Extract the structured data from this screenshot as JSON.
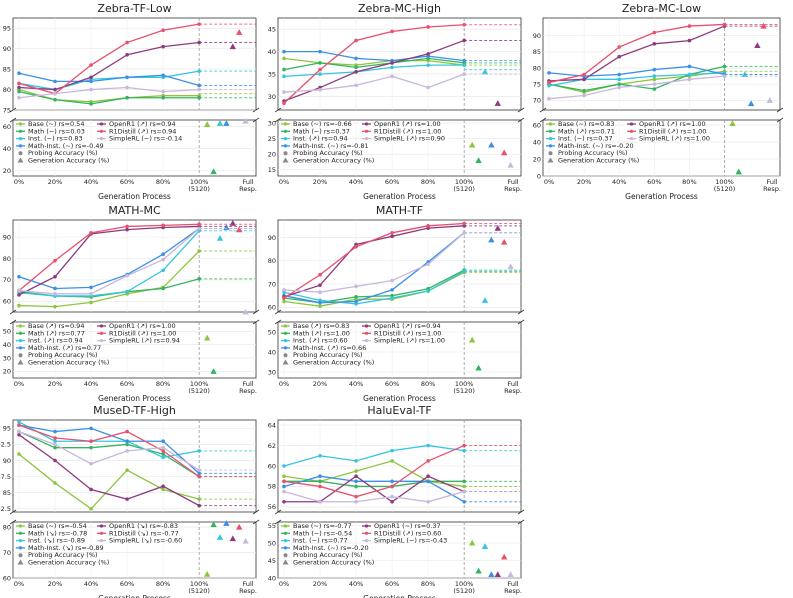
{
  "figure": {
    "x_label": "Generation Process",
    "colors": {
      "Base": "#8cc63f",
      "Math": "#35b35f",
      "Inst.": "#35c5e0",
      "Math-Inst.": "#3a8fe6",
      "OpenR1": "#8e3a7f",
      "R1Distill": "#e8506c",
      "SimpleRL": "#c9b7dc"
    },
    "legend_symbols": {
      "probing": "Probing Accuracy (%)",
      "generation": "Generation Accuracy (%)"
    }
  },
  "chart_data": [
    {
      "title": "Zebra-TF-Low",
      "type": "line",
      "x": [
        "0%",
        "20%",
        "40%",
        "60%",
        "80%",
        "100%\n(5120)",
        "Full\nResp."
      ],
      "upper": {
        "ylim": [
          75,
          97.5
        ],
        "ticks": [
          75,
          80,
          85,
          90,
          95
        ]
      },
      "lower": {
        "ylim": [
          15,
          66
        ],
        "ticks": [
          20,
          40,
          60
        ]
      },
      "series": [
        {
          "name": "Base",
          "trend": "~",
          "rs": "0.54",
          "probe": [
            80.0,
            77.5,
            77.0,
            78.0,
            78.5,
            78.5
          ],
          "final": 79,
          "gen": 62
        },
        {
          "name": "Math",
          "trend": "~",
          "rs": "0.03",
          "probe": [
            79.5,
            77.5,
            76.5,
            78.0,
            78.0,
            78.0
          ],
          "final": 78,
          "gen": 19
        },
        {
          "name": "Inst.",
          "trend": "~",
          "rs": "0.83",
          "probe": [
            81.5,
            80.0,
            82.5,
            83.0,
            83.0,
            84.5
          ],
          "final": 84.5,
          "gen": 63
        },
        {
          "name": "Math-Inst.",
          "trend": "~",
          "rs": "-0.49",
          "probe": [
            84.0,
            82.0,
            82.0,
            83.0,
            83.5,
            81.0
          ],
          "final": 81,
          "gen": 63
        },
        {
          "name": "OpenR1",
          "trend": "↗",
          "rs": "0.94",
          "probe": [
            80.5,
            80.0,
            83.0,
            88.5,
            90.5,
            91.5
          ],
          "final": 91.5,
          "gen": 90.5
        },
        {
          "name": "R1Distill",
          "trend": "↗",
          "rs": "0.94",
          "probe": [
            81.5,
            79.0,
            86.0,
            91.5,
            94.5,
            96.0
          ],
          "final": 96,
          "gen": 94
        },
        {
          "name": "SimpleRL",
          "trend": "~",
          "rs": "-0.14",
          "probe": [
            78.0,
            79.0,
            80.0,
            80.5,
            79.5,
            80.0
          ],
          "final": 80,
          "gen": 65
        }
      ]
    },
    {
      "title": "Zebra-MC-High",
      "type": "line",
      "x": [
        "0%",
        "20%",
        "40%",
        "60%",
        "80%",
        "100%\n(5120)",
        "Full\nResp."
      ],
      "upper": {
        "ylim": [
          27,
          47.5
        ],
        "ticks": [
          30,
          35,
          40,
          45
        ]
      },
      "lower": {
        "ylim": [
          13,
          31
        ],
        "ticks": [
          15,
          20,
          25,
          30
        ]
      },
      "series": [
        {
          "name": "Base",
          "trend": "~",
          "rs": "-0.66",
          "probe": [
            38.5,
            37.5,
            37.0,
            38.0,
            38.0,
            37.0
          ],
          "final": 37,
          "gen": 23
        },
        {
          "name": "Math",
          "trend": "~",
          "rs": "0.37",
          "probe": [
            36.0,
            37.5,
            36.5,
            37.5,
            38.5,
            37.5
          ],
          "final": 37.5,
          "gen": 18
        },
        {
          "name": "Inst.",
          "trend": "↗",
          "rs": "0.94",
          "probe": [
            34.5,
            35.0,
            35.5,
            36.5,
            37.0,
            37.0
          ],
          "final": 36,
          "gen": 35.5
        },
        {
          "name": "Math-Inst.",
          "trend": "~",
          "rs": "-0.81",
          "probe": [
            40.0,
            40.0,
            38.5,
            38.0,
            39.0,
            38.0
          ],
          "final": 38,
          "gen": 23
        },
        {
          "name": "OpenR1",
          "trend": "↗",
          "rs": "1.00",
          "probe": [
            29.0,
            32.0,
            35.5,
            37.5,
            39.5,
            42.5
          ],
          "final": 42.5,
          "gen": 28.5
        },
        {
          "name": "R1Distill",
          "trend": "↗",
          "rs": "1.00",
          "probe": [
            28.5,
            36.0,
            42.5,
            44.5,
            45.5,
            46.0
          ],
          "final": 46,
          "gen": 20.5
        },
        {
          "name": "SimpleRL",
          "trend": "↗",
          "rs": "0.90",
          "probe": [
            31.0,
            31.5,
            32.5,
            34.5,
            32.0,
            35.0
          ],
          "final": 35,
          "gen": 16.5
        }
      ]
    },
    {
      "title": "Zebra-MC-Low",
      "type": "line",
      "x": [
        "0%",
        "20%",
        "40%",
        "60%",
        "80%",
        "100%\n(5120)",
        "Full\nResp."
      ],
      "upper": {
        "ylim": [
          67,
          95.5
        ],
        "ticks": [
          70,
          75,
          80,
          85,
          90
        ]
      },
      "lower": {
        "ylim": [
          0,
          66
        ],
        "ticks": [
          0,
          20,
          40,
          60
        ]
      },
      "series": [
        {
          "name": "Base",
          "trend": "~",
          "rs": "0.83",
          "probe": [
            75.0,
            72.5,
            75.0,
            76.5,
            77.5,
            79.0
          ],
          "final": 79,
          "gen": 62
        },
        {
          "name": "Math",
          "trend": "↗",
          "rs": "0.71",
          "probe": [
            75.0,
            73.0,
            75.0,
            73.5,
            78.0,
            80.5
          ],
          "final": 80.5,
          "gen": 5
        },
        {
          "name": "Inst.",
          "trend": "~",
          "rs": "0.37",
          "probe": [
            74.5,
            76.5,
            76.5,
            77.5,
            78.0,
            78.5
          ],
          "final": 78,
          "gen": 78
        },
        {
          "name": "Math-Inst.",
          "trend": "~",
          "rs": "-0.20",
          "probe": [
            78.5,
            77.5,
            78.0,
            79.5,
            80.5,
            78.0
          ],
          "final": 78,
          "gen": 69
        },
        {
          "name": "OpenR1",
          "trend": "↗",
          "rs": "1.00",
          "probe": [
            76.0,
            76.5,
            83.5,
            87.5,
            88.5,
            93.0
          ],
          "final": 93,
          "gen": 87
        },
        {
          "name": "R1Distill",
          "trend": "↗",
          "rs": "1.00",
          "probe": [
            75.5,
            78.0,
            86.5,
            91.0,
            93.0,
            93.5
          ],
          "final": 93.5,
          "gen": 93
        },
        {
          "name": "SimpleRL",
          "trend": "↗",
          "rs": "1.00",
          "probe": [
            70.5,
            71.5,
            74.0,
            75.0,
            76.5,
            77.5
          ],
          "final": 77.5,
          "gen": 70
        }
      ]
    },
    {
      "title": "MATH-MC",
      "type": "line",
      "x": [
        "0%",
        "20%",
        "40%",
        "60%",
        "80%",
        "100%\n(5120)",
        "Full\nResp."
      ],
      "upper": {
        "ylim": [
          55,
          98
        ],
        "ticks": [
          60,
          70,
          80,
          90
        ]
      },
      "lower": {
        "ylim": [
          15,
          57
        ],
        "ticks": [
          20,
          30,
          40,
          50
        ]
      },
      "series": [
        {
          "name": "Base",
          "trend": "↗",
          "rs": "0.94",
          "probe": [
            58.0,
            57.5,
            59.5,
            63.5,
            66.5,
            83.5
          ],
          "final": 83.5,
          "gen": 45
        },
        {
          "name": "Math",
          "trend": "↗",
          "rs": "0.77",
          "probe": [
            64.5,
            62.5,
            62.0,
            64.5,
            66.0,
            70.5
          ],
          "final": 70.5,
          "gen": 20
        },
        {
          "name": "Inst.",
          "trend": "↗",
          "rs": "0.94",
          "probe": [
            64.0,
            62.5,
            62.5,
            64.5,
            74.5,
            93.0
          ],
          "final": 93,
          "gen": 89.5
        },
        {
          "name": "Math-Inst.",
          "trend": "↗",
          "rs": "0.77",
          "probe": [
            71.5,
            66.0,
            66.5,
            72.5,
            82.0,
            94.0
          ],
          "final": 94,
          "gen": 94.5
        },
        {
          "name": "OpenR1",
          "trend": "↗",
          "rs": "1.00",
          "probe": [
            63.0,
            71.5,
            91.5,
            93.5,
            94.5,
            95.0
          ],
          "final": 95,
          "gen": 96.5
        },
        {
          "name": "R1Distill",
          "trend": "↗",
          "rs": "1.00",
          "probe": [
            65.0,
            79.0,
            92.0,
            95.0,
            95.5,
            96.0
          ],
          "final": 96,
          "gen": 93.5
        },
        {
          "name": "SimpleRL",
          "trend": "↗",
          "rs": "0.94",
          "probe": [
            65.0,
            63.5,
            63.5,
            72.0,
            79.5,
            94.0
          ],
          "final": 94,
          "gen": 55
        }
      ]
    },
    {
      "title": "MATH-TF",
      "type": "line",
      "x": [
        "0%",
        "20%",
        "40%",
        "60%",
        "80%",
        "100%\n(5120)",
        "Full\nResp."
      ],
      "upper": {
        "ylim": [
          58,
          97.5
        ],
        "ticks": [
          60,
          70,
          80,
          90
        ]
      },
      "lower": {
        "ylim": [
          27,
          55
        ],
        "ticks": [
          30,
          40,
          50
        ]
      },
      "series": [
        {
          "name": "Base",
          "trend": "↗",
          "rs": "0.83",
          "probe": [
            62.5,
            60.5,
            63.5,
            63.5,
            67.0,
            75.0
          ],
          "final": 75,
          "gen": 46
        },
        {
          "name": "Math",
          "trend": "↗",
          "rs": "1.00",
          "probe": [
            64.0,
            62.0,
            64.5,
            65.0,
            68.0,
            76.0
          ],
          "final": 75.5,
          "gen": 32
        },
        {
          "name": "Inst.",
          "trend": "↗",
          "rs": "0.60",
          "probe": [
            66.5,
            63.0,
            61.5,
            64.0,
            67.0,
            75.5
          ],
          "final": 76,
          "gen": 63
        },
        {
          "name": "Math-Inst.",
          "trend": "↗",
          "rs": "0.66",
          "probe": [
            65.0,
            62.0,
            62.5,
            67.5,
            79.5,
            92.0
          ],
          "final": 92,
          "gen": 89
        },
        {
          "name": "OpenR1",
          "trend": "↗",
          "rs": "0.94",
          "probe": [
            64.5,
            69.5,
            87.0,
            90.5,
            94.0,
            95.0
          ],
          "final": 95,
          "gen": 94
        },
        {
          "name": "R1Distill",
          "trend": "↗",
          "rs": "1.00",
          "probe": [
            64.0,
            74.0,
            86.0,
            92.0,
            95.0,
            96.0
          ],
          "final": 96,
          "gen": 88
        },
        {
          "name": "SimpleRL",
          "trend": "↗",
          "rs": "1.00",
          "probe": [
            67.5,
            66.5,
            69.0,
            71.5,
            78.5,
            92.0
          ],
          "final": 92,
          "gen": 77.5
        }
      ]
    },
    {
      "title": "MuseD-TF-High",
      "type": "line",
      "x": [
        "0%",
        "20%",
        "40%",
        "60%",
        "80%",
        "100%\n(5120)",
        "Full\nResp."
      ],
      "upper": {
        "ylim": [
          82,
          96.3
        ],
        "ticks": [
          82.5,
          85.0,
          87.5,
          90.0,
          92.5,
          95.0
        ]
      },
      "lower": {
        "ylim": [
          60,
          82
        ],
        "ticks": [
          60,
          70,
          80
        ]
      },
      "series": [
        {
          "name": "Base",
          "trend": "~",
          "rs": "-0.54",
          "probe": [
            91.0,
            86.5,
            82.5,
            88.5,
            85.5,
            84.0
          ],
          "final": 84,
          "gen": 61.5
        },
        {
          "name": "Math",
          "trend": "↘",
          "rs": "-0.78",
          "probe": [
            94.5,
            92.0,
            92.0,
            92.5,
            91.0,
            87.5
          ],
          "final": 87.5,
          "gen": 81
        },
        {
          "name": "Inst.",
          "trend": "↘",
          "rs": "-0.89",
          "probe": [
            96.0,
            93.0,
            93.0,
            93.0,
            90.5,
            91.5
          ],
          "final": 91.5,
          "gen": 76
        },
        {
          "name": "Math-Inst.",
          "trend": "↘",
          "rs": "-0.89",
          "probe": [
            95.5,
            94.5,
            95.0,
            93.0,
            93.0,
            88.0
          ],
          "final": 88,
          "gen": 81.5
        },
        {
          "name": "OpenR1",
          "trend": "↘",
          "rs": "-0.83",
          "probe": [
            94.0,
            90.0,
            85.5,
            84.0,
            86.0,
            83.0
          ],
          "final": 83,
          "gen": 75.5
        },
        {
          "name": "R1Distill",
          "trend": "↘",
          "rs": "-0.77",
          "probe": [
            95.5,
            93.5,
            93.0,
            94.5,
            91.5,
            87.5
          ],
          "final": 87.5,
          "gen": 80
        },
        {
          "name": "SimpleRL",
          "trend": "↘",
          "rs": "-0.60",
          "probe": [
            94.5,
            92.5,
            89.5,
            91.5,
            92.0,
            88.5
          ],
          "final": 88.5,
          "gen": 74.5
        }
      ]
    },
    {
      "title": "HaluEval-TF",
      "type": "line",
      "x": [
        "0%",
        "20%",
        "40%",
        "60%",
        "80%",
        "100%\n(5120)",
        "Full\nResp."
      ],
      "upper": {
        "ylim": [
          55.5,
          64.5
        ],
        "ticks": [
          56,
          58,
          60,
          62,
          64
        ]
      },
      "lower": {
        "ylim": [
          40,
          56
        ],
        "ticks": [
          40,
          45,
          50,
          55
        ]
      },
      "series": [
        {
          "name": "Base",
          "trend": "~",
          "rs": "-0.77",
          "probe": [
            59.0,
            58.5,
            59.5,
            60.5,
            58.5,
            58.0
          ],
          "final": 58,
          "gen": 50
        },
        {
          "name": "Math",
          "trend": "~",
          "rs": "-0.54",
          "probe": [
            58.5,
            58.5,
            58.0,
            58.0,
            58.5,
            58.5
          ],
          "final": 58.5,
          "gen": 42
        },
        {
          "name": "Inst.",
          "trend": "~",
          "rs": "0.77",
          "probe": [
            60.0,
            61.0,
            60.5,
            61.5,
            62.0,
            61.5
          ],
          "final": 61.5,
          "gen": 49
        },
        {
          "name": "Math-Inst.",
          "trend": "~",
          "rs": "-0.20",
          "probe": [
            58.0,
            59.0,
            58.5,
            58.5,
            58.5,
            56.5
          ],
          "final": 56.5,
          "gen": 41
        },
        {
          "name": "OpenR1",
          "trend": "~",
          "rs": "0.37",
          "probe": [
            56.5,
            56.5,
            59.0,
            56.5,
            59.0,
            57.5
          ],
          "final": 57.5,
          "gen": 41
        },
        {
          "name": "R1Distill",
          "trend": "↗",
          "rs": "0.60",
          "probe": [
            58.5,
            58.0,
            57.0,
            58.0,
            60.5,
            62.0
          ],
          "final": 62,
          "gen": 46
        },
        {
          "name": "SimpleRL",
          "trend": "~",
          "rs": "-0.43",
          "probe": [
            57.5,
            56.5,
            56.5,
            57.0,
            56.5,
            57.5
          ],
          "final": 57.5,
          "gen": 41
        }
      ]
    }
  ]
}
